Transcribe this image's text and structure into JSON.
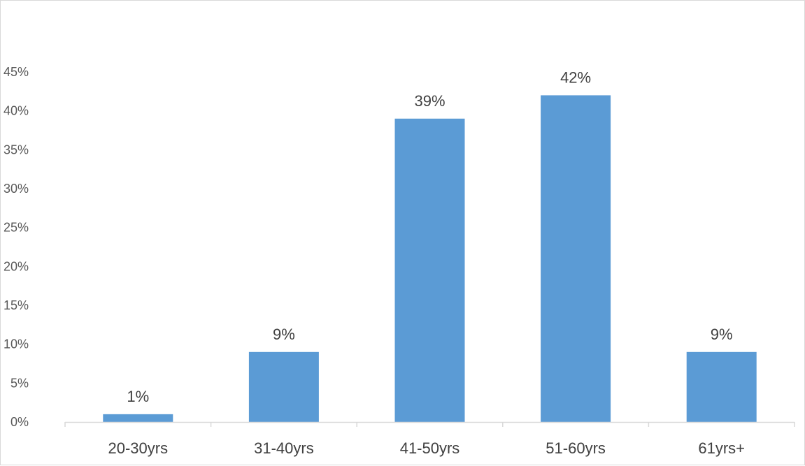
{
  "chart_data": {
    "type": "bar",
    "categories": [
      "20-30yrs",
      "31-40yrs",
      "41-50yrs",
      "51-60yrs",
      "61yrs+"
    ],
    "values": [
      1,
      9,
      39,
      42,
      9
    ],
    "data_labels": [
      "1%",
      "9%",
      "39%",
      "42%",
      "9%"
    ],
    "y_ticks": [
      0,
      5,
      10,
      15,
      20,
      25,
      30,
      35,
      40,
      45
    ],
    "y_tick_labels": [
      "0%",
      "5%",
      "10%",
      "15%",
      "20%",
      "25%",
      "30%",
      "35%",
      "40%",
      "45%"
    ],
    "ylim": [
      0,
      45
    ],
    "title": "",
    "xlabel": "",
    "ylabel": "",
    "grid": false,
    "legend": "none",
    "bar_color": "#5b9bd5",
    "axis_color": "#d9d9d9"
  }
}
